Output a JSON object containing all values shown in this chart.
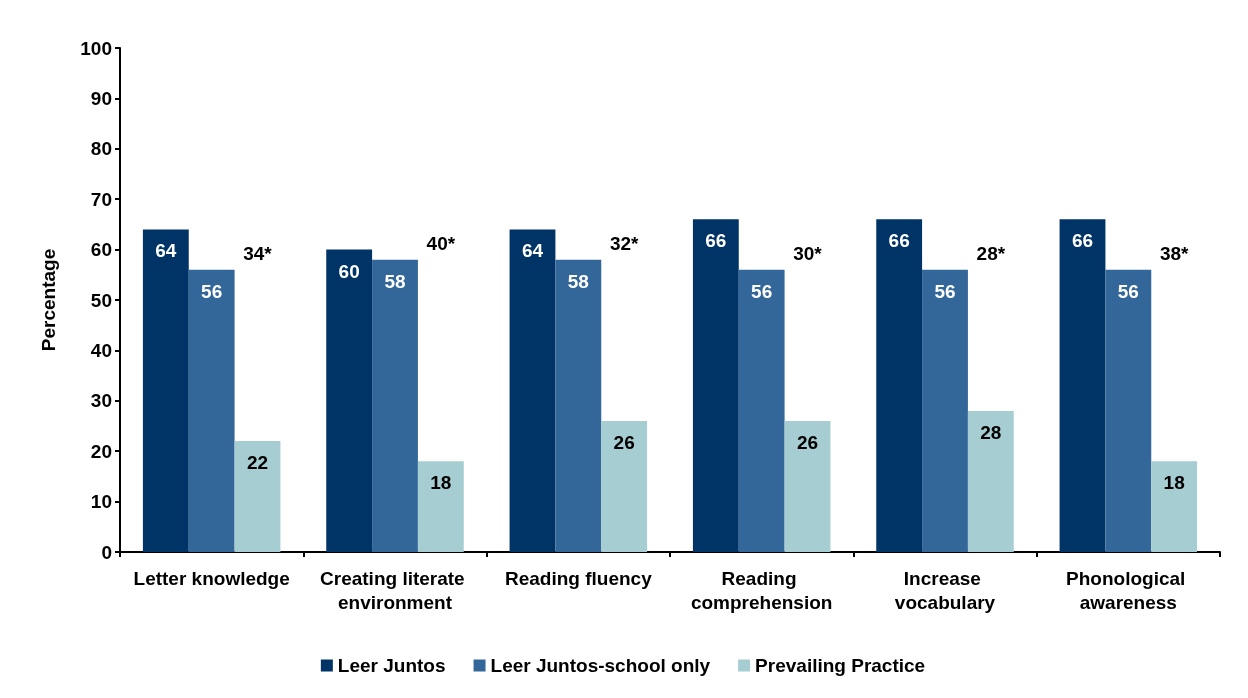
{
  "chart_data": {
    "type": "bar",
    "ylabel": "Percentage",
    "categories": [
      "Letter knowledge",
      "Creating literate environment",
      "Reading fluency",
      "Reading comprehension",
      "Increase vocabulary",
      "Phonological awareness"
    ],
    "series": [
      {
        "name": "Leer Juntos",
        "color": "#003366",
        "values": [
          64,
          60,
          64,
          66,
          66,
          66
        ]
      },
      {
        "name": "Leer Juntos-school only",
        "color": "#336699",
        "values": [
          56,
          58,
          58,
          56,
          56,
          56
        ]
      },
      {
        "name": "Prevailing Practice",
        "color": "#a6cdd2",
        "values": [
          22,
          18,
          26,
          26,
          28,
          18
        ]
      }
    ],
    "annotations": [
      "34*",
      "40*",
      "32*",
      "30*",
      "28*",
      "38*"
    ],
    "ylim": [
      0,
      100
    ],
    "yticks": [
      0,
      10,
      20,
      30,
      40,
      50,
      60,
      70,
      80,
      90,
      100
    ],
    "data_labels": true,
    "grid": false,
    "legend": "bottom"
  }
}
